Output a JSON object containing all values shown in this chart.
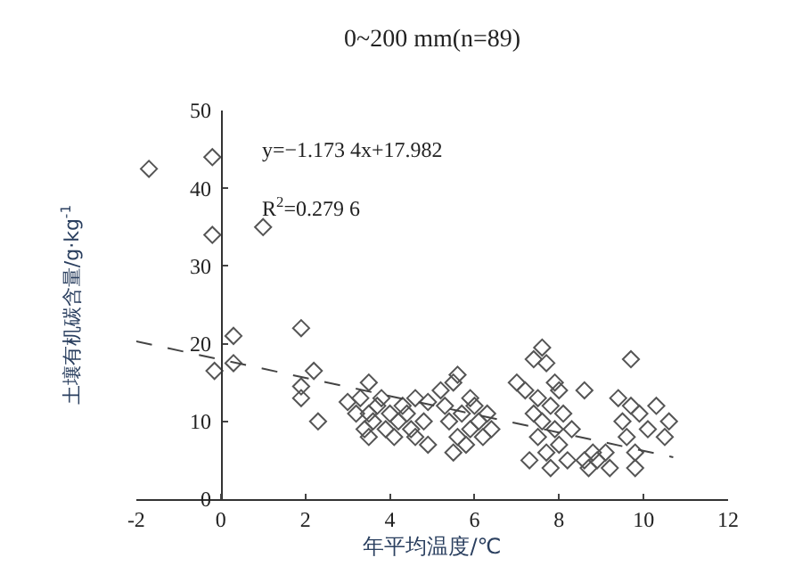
{
  "chart_data": {
    "type": "scatter",
    "title": "0~200 mm(n=89)",
    "xlabel": "年平均温度/℃",
    "ylabel": "土壤有机碳含量/g·kg$^{-1}$",
    "annotations": [
      "y=−1.173 4x+17.982",
      "R$^{2}$=0.279 6"
    ],
    "xlim": [
      -2,
      12
    ],
    "xticks": [
      -2,
      0,
      2,
      4,
      6,
      8,
      10,
      12
    ],
    "ylim": [
      0,
      50
    ],
    "yticks": [
      0,
      10,
      20,
      30,
      40,
      50
    ],
    "grid": false,
    "marker": "diamond",
    "series": [
      {
        "color": "#555555",
        "x": [
          -1.7,
          -0.2,
          -0.2,
          1.0,
          0.3,
          -0.15,
          0.3,
          1.9,
          1.9,
          1.9,
          2.2,
          2.3,
          3.0,
          3.2,
          3.3,
          3.4,
          3.5,
          3.5,
          3.5,
          3.6,
          3.7,
          3.8,
          3.9,
          4.0,
          4.1,
          4.2,
          4.4,
          4.5,
          4.6,
          4.8,
          4.9,
          4.9,
          4.6,
          4.3,
          5.2,
          5.3,
          5.4,
          5.5,
          5.5,
          5.6,
          5.7,
          5.8,
          5.9,
          5.9,
          6.0,
          6.1,
          6.2,
          6.3,
          6.4,
          5.6,
          7.0,
          7.2,
          7.3,
          7.4,
          7.4,
          7.5,
          7.5,
          7.6,
          7.6,
          7.7,
          7.7,
          7.8,
          7.8,
          7.9,
          8.0,
          8.0,
          8.1,
          8.2,
          8.3,
          7.9,
          8.6,
          8.6,
          8.7,
          8.8,
          8.9,
          9.1,
          9.2,
          9.4,
          9.5,
          9.6,
          9.7,
          9.7,
          9.8,
          9.8,
          9.9,
          10.1,
          10.3,
          10.5,
          10.6
        ],
        "values": [
          42.5,
          44,
          34,
          35,
          21,
          16.5,
          17.5,
          22,
          14.5,
          13,
          16.5,
          10,
          12.5,
          11,
          13,
          9,
          15,
          8,
          11,
          10,
          12,
          13,
          9,
          11,
          8,
          10,
          11,
          9,
          8,
          10,
          7,
          12.5,
          13,
          12,
          14,
          12,
          10,
          6,
          15,
          8,
          11,
          7,
          13,
          9,
          12,
          10,
          8,
          11,
          9,
          16,
          15,
          14,
          5,
          11,
          18,
          8,
          13,
          19.5,
          10,
          6,
          17.5,
          12,
          4,
          9,
          14,
          7,
          11,
          5,
          9,
          15,
          14,
          5,
          4,
          6,
          5,
          6,
          4,
          13,
          10,
          8,
          18,
          12,
          4,
          6,
          11,
          9,
          12,
          8,
          10
        ]
      },
      {
        "type": "line",
        "color": "#444444",
        "marker": "none",
        "line_style": "dashed",
        "x": [
          -2,
          10.7
        ],
        "values": [
          20.3,
          5.4
        ]
      }
    ]
  }
}
